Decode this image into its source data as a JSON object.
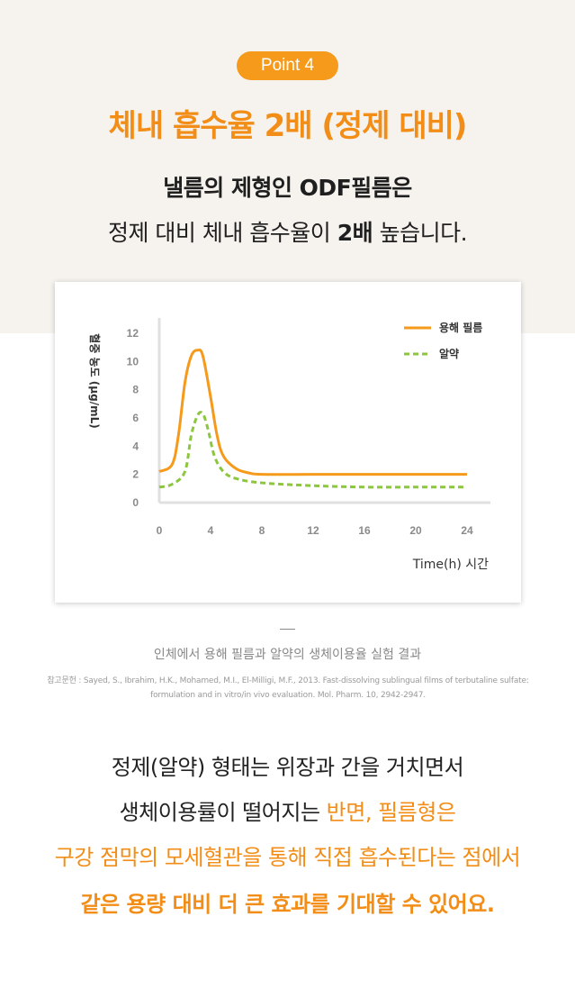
{
  "header": {
    "badge": "Point 4",
    "title": "체내 흡수율 2배 (정제 대비)",
    "subtitle_line1": "낼름의 제형인 ODF필름은",
    "subtitle_line2_part1": "정제 대비 체내 흡수율이 ",
    "subtitle_line2_bold": "2배",
    "subtitle_line2_part2": " 높습니다."
  },
  "chart_data": {
    "type": "line",
    "xlabel": "Time(h) 시간",
    "ylabel": "혈중 농도 (µg/mL)",
    "x_ticks": [
      0,
      4,
      8,
      12,
      16,
      20,
      24
    ],
    "y_ticks": [
      0,
      2,
      4,
      6,
      8,
      10,
      12
    ],
    "xlim": [
      0,
      24
    ],
    "ylim": [
      0,
      12
    ],
    "grid": false,
    "legend_position": "top-right",
    "series": [
      {
        "name": "용해 필름",
        "color": "#f59a1b",
        "style": "solid",
        "points": [
          [
            0,
            2.2
          ],
          [
            1,
            2.7
          ],
          [
            1.5,
            4.8
          ],
          [
            2,
            8.5
          ],
          [
            2.5,
            10.4
          ],
          [
            3,
            10.8
          ],
          [
            3.4,
            10.4
          ],
          [
            4,
            7.5
          ],
          [
            4.5,
            4.8
          ],
          [
            5,
            3.3
          ],
          [
            6,
            2.4
          ],
          [
            7,
            2.1
          ],
          [
            8,
            2.0
          ],
          [
            12,
            2.0
          ],
          [
            16,
            2.0
          ],
          [
            20,
            2.0
          ],
          [
            24,
            2.0
          ]
        ]
      },
      {
        "name": "알약",
        "color": "#8cc63f",
        "style": "dashed",
        "points": [
          [
            0,
            1.1
          ],
          [
            1,
            1.3
          ],
          [
            2,
            2.2
          ],
          [
            2.5,
            4.8
          ],
          [
            3,
            6.2
          ],
          [
            3.4,
            6.3
          ],
          [
            3.8,
            5.2
          ],
          [
            4.3,
            3.3
          ],
          [
            5,
            2.2
          ],
          [
            6,
            1.7
          ],
          [
            8,
            1.4
          ],
          [
            12,
            1.2
          ],
          [
            16,
            1.1
          ],
          [
            20,
            1.1
          ],
          [
            24,
            1.1
          ]
        ]
      }
    ]
  },
  "caption": {
    "divider": "—",
    "text": "인체에서 용해 필름과 알약의 생체이용율 실험 결과",
    "reference_line1": "참고문헌 : Sayed, S., Ibrahim, H.K., Mohamed, M.I., El-Milligi, M.F., 2013. Fast-dissolving sublingual films of terbutaline sulfate:",
    "reference_line2": "formulation and in vitro/in vivo evaluation. Mol. Pharm. 10, 2942-2947."
  },
  "body": {
    "line1": "정제(알약) 형태는 위장과 간을 거치면서",
    "line2_part1": "생체이용률이 떨어지는 ",
    "line2_part2": "반면, 필름형은",
    "line3": "구강 점막의 모세혈관을 통해 직접 흡수된다는 점에서",
    "line4": "같은 용량 대비 더 큰 효과를 기대할 수 있어요."
  }
}
